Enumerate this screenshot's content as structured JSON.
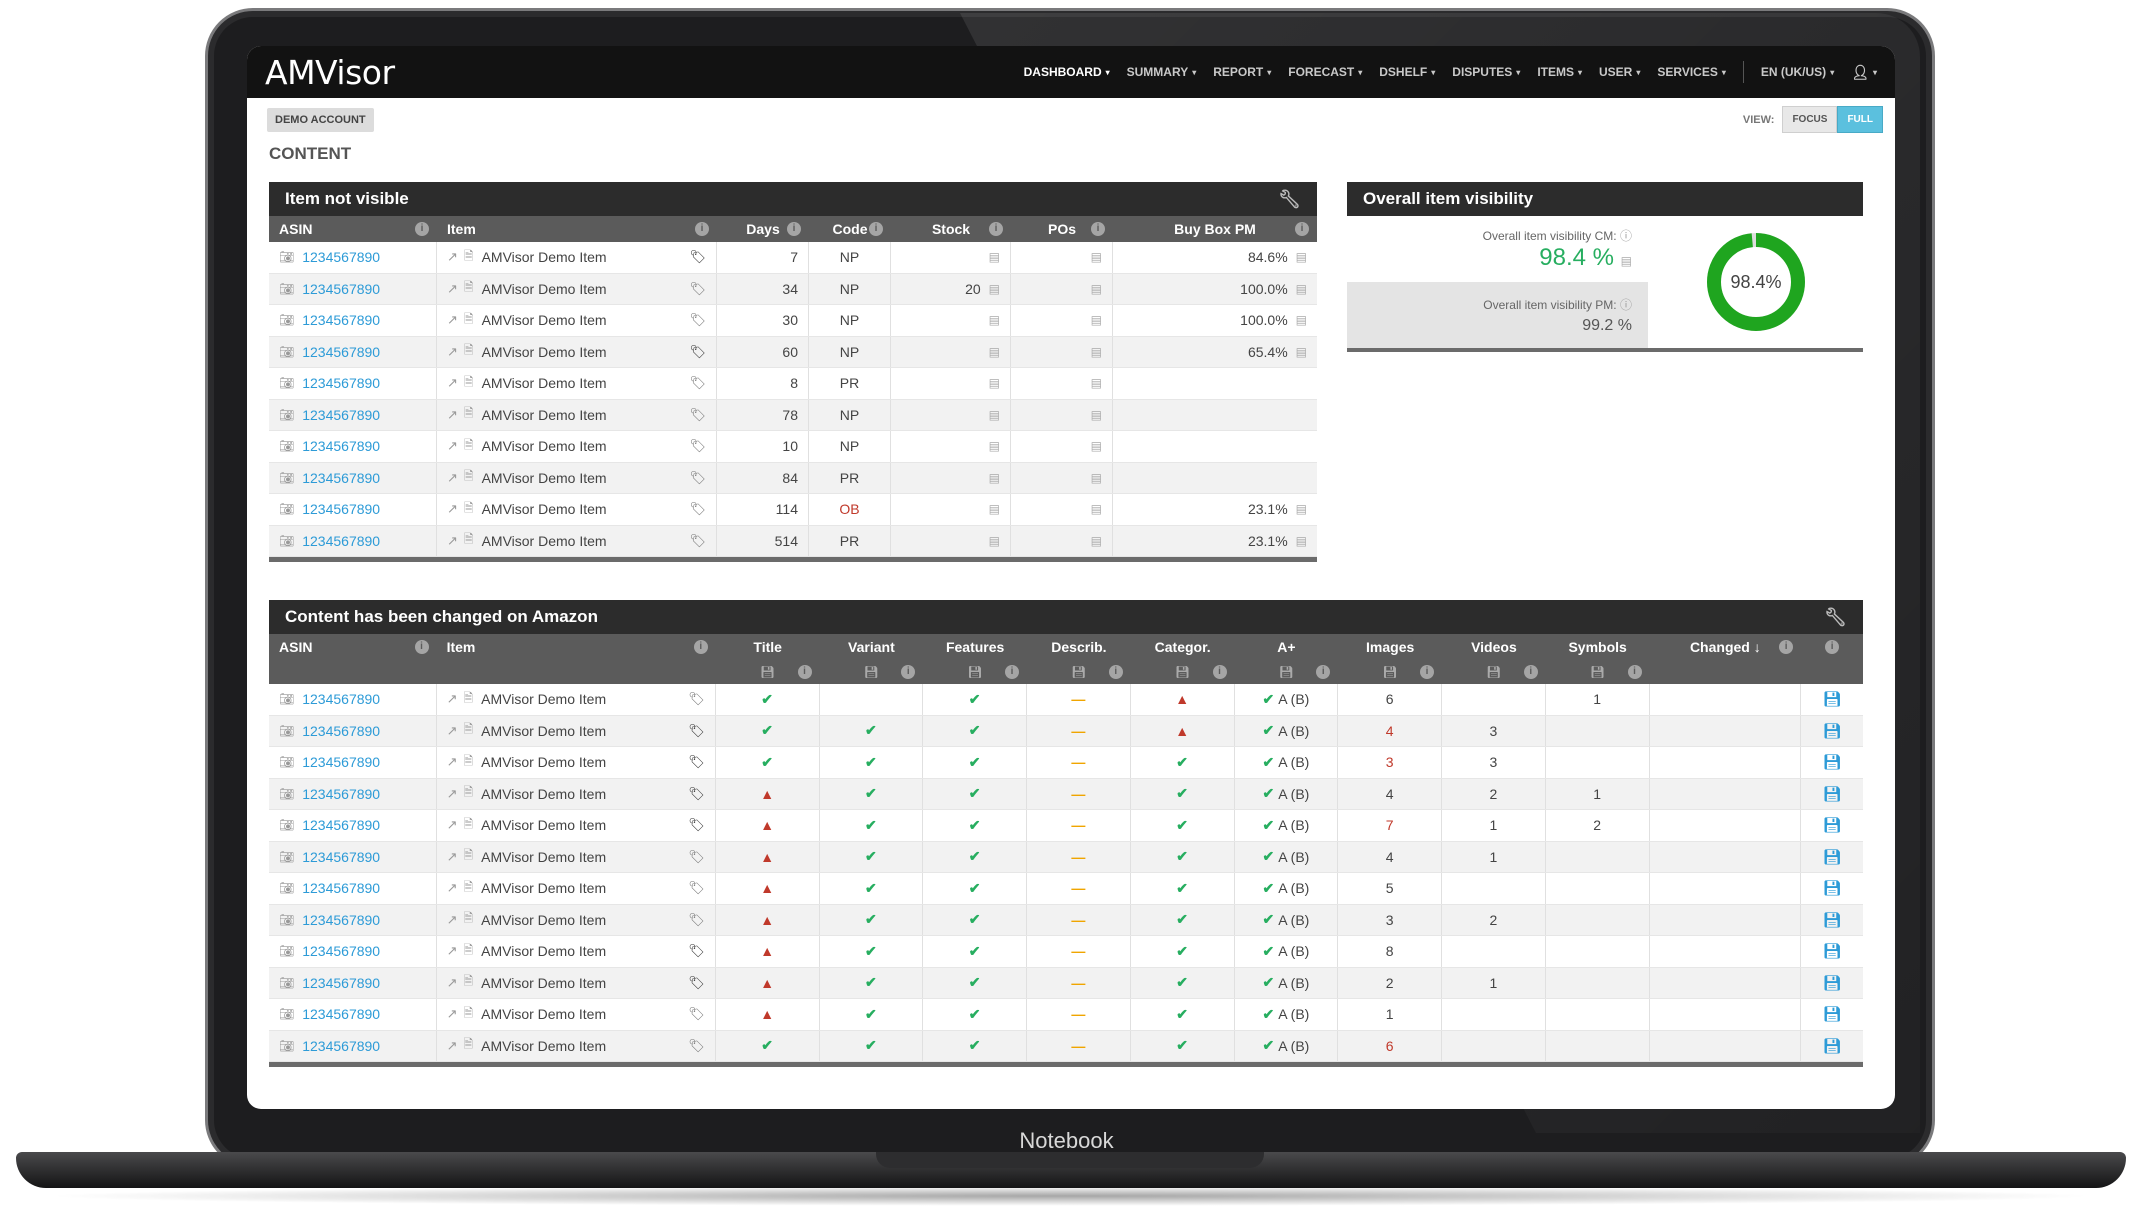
{
  "app": {
    "logo": "AMVisor",
    "device_label": "Notebook"
  },
  "nav": {
    "items": [
      "DASHBOARD",
      "SUMMARY",
      "REPORT",
      "FORECAST",
      "DSHELF",
      "DISPUTES",
      "ITEMS",
      "USER",
      "SERVICES"
    ],
    "language": "EN (UK/US)",
    "active": "DASHBOARD"
  },
  "header": {
    "account_badge": "DEMO ACCOUNT",
    "title": "CONTENT",
    "view_label": "VIEW:",
    "view_focus": "FOCUS",
    "view_full": "FULL"
  },
  "panel1": {
    "title": "Item not visible",
    "columns": [
      "ASIN",
      "Item",
      "Days",
      "Code",
      "Stock",
      "POs",
      "Buy Box PM"
    ],
    "rows": [
      {
        "asin": "1234567890",
        "item": "AMVisor Demo Item",
        "tag_dark": true,
        "days": "7",
        "code": "NP",
        "stock": "",
        "buybox": "84.6%"
      },
      {
        "asin": "1234567890",
        "item": "AMVisor Demo Item",
        "tag_dark": false,
        "days": "34",
        "code": "NP",
        "stock": "20",
        "buybox": "100.0%"
      },
      {
        "asin": "1234567890",
        "item": "AMVisor Demo Item",
        "tag_dark": false,
        "days": "30",
        "code": "NP",
        "stock": "",
        "buybox": "100.0%"
      },
      {
        "asin": "1234567890",
        "item": "AMVisor Demo Item",
        "tag_dark": true,
        "days": "60",
        "code": "NP",
        "stock": "",
        "buybox": "65.4%"
      },
      {
        "asin": "1234567890",
        "item": "AMVisor Demo Item",
        "tag_dark": false,
        "days": "8",
        "code": "PR",
        "stock": "",
        "buybox": ""
      },
      {
        "asin": "1234567890",
        "item": "AMVisor Demo Item",
        "tag_dark": false,
        "days": "78",
        "code": "NP",
        "stock": "",
        "buybox": ""
      },
      {
        "asin": "1234567890",
        "item": "AMVisor Demo Item",
        "tag_dark": false,
        "days": "10",
        "code": "NP",
        "stock": "",
        "buybox": ""
      },
      {
        "asin": "1234567890",
        "item": "AMVisor Demo Item",
        "tag_dark": false,
        "days": "84",
        "code": "PR",
        "stock": "",
        "buybox": ""
      },
      {
        "asin": "1234567890",
        "item": "AMVisor Demo Item",
        "tag_dark": false,
        "days": "114",
        "code": "OB",
        "stock": "",
        "buybox": "23.1%"
      },
      {
        "asin": "1234567890",
        "item": "AMVisor Demo Item",
        "tag_dark": false,
        "days": "514",
        "code": "PR",
        "stock": "",
        "buybox": "23.1%"
      }
    ]
  },
  "panel2": {
    "title": "Overall item visibility",
    "cm_label": "Overall item visibility CM:",
    "cm_value": "98.4 %",
    "pm_label": "Overall item visibility PM:",
    "pm_value": "99.2 %",
    "donut_label": "98.4%",
    "donut_fraction": 0.984,
    "donut_color": "#1fa51f"
  },
  "panel3": {
    "title": "Content has been changed on Amazon",
    "columns": [
      "ASIN",
      "Item",
      "Title",
      "Variant",
      "Features",
      "Describ.",
      "Categor.",
      "A+",
      "Images",
      "Videos",
      "Symbols",
      "Changed ↓"
    ],
    "aplus_text": "A (B)",
    "rows": [
      {
        "asin": "1234567890",
        "item": "AMVisor Demo Item",
        "tag_dark": false,
        "title": "check",
        "variant": "",
        "features": "check",
        "describ": "dash",
        "categor": "warn",
        "images": "6",
        "images_red": false,
        "videos": "",
        "symbols": "1"
      },
      {
        "asin": "1234567890",
        "item": "AMVisor Demo Item",
        "tag_dark": true,
        "title": "check",
        "variant": "check",
        "features": "check",
        "describ": "dash",
        "categor": "warn",
        "images": "4",
        "images_red": true,
        "videos": "3",
        "symbols": ""
      },
      {
        "asin": "1234567890",
        "item": "AMVisor Demo Item",
        "tag_dark": true,
        "title": "check",
        "variant": "check",
        "features": "check",
        "describ": "dash",
        "categor": "check",
        "images": "3",
        "images_red": true,
        "videos": "3",
        "symbols": ""
      },
      {
        "asin": "1234567890",
        "item": "AMVisor Demo Item",
        "tag_dark": true,
        "title": "warn",
        "variant": "check",
        "features": "check",
        "describ": "dash",
        "categor": "check",
        "images": "4",
        "images_red": false,
        "videos": "2",
        "symbols": "1"
      },
      {
        "asin": "1234567890",
        "item": "AMVisor Demo Item",
        "tag_dark": true,
        "title": "warn",
        "variant": "check",
        "features": "check",
        "describ": "dash",
        "categor": "check",
        "images": "7",
        "images_red": true,
        "videos": "1",
        "symbols": "2"
      },
      {
        "asin": "1234567890",
        "item": "AMVisor Demo Item",
        "tag_dark": false,
        "title": "warn",
        "variant": "check",
        "features": "check",
        "describ": "dash",
        "categor": "check",
        "images": "4",
        "images_red": false,
        "videos": "1",
        "symbols": ""
      },
      {
        "asin": "1234567890",
        "item": "AMVisor Demo Item",
        "tag_dark": false,
        "title": "warn",
        "variant": "check",
        "features": "check",
        "describ": "dash",
        "categor": "check",
        "images": "5",
        "images_red": false,
        "videos": "",
        "symbols": ""
      },
      {
        "asin": "1234567890",
        "item": "AMVisor Demo Item",
        "tag_dark": false,
        "title": "warn",
        "variant": "check",
        "features": "check",
        "describ": "dash",
        "categor": "check",
        "images": "3",
        "images_red": false,
        "videos": "2",
        "symbols": ""
      },
      {
        "asin": "1234567890",
        "item": "AMVisor Demo Item",
        "tag_dark": true,
        "title": "warn",
        "variant": "check",
        "features": "check",
        "describ": "dash",
        "categor": "check",
        "images": "8",
        "images_red": false,
        "videos": "",
        "symbols": ""
      },
      {
        "asin": "1234567890",
        "item": "AMVisor Demo Item",
        "tag_dark": true,
        "title": "warn",
        "variant": "check",
        "features": "check",
        "describ": "dash",
        "categor": "check",
        "images": "2",
        "images_red": false,
        "videos": "1",
        "symbols": ""
      },
      {
        "asin": "1234567890",
        "item": "AMVisor Demo Item",
        "tag_dark": false,
        "title": "warn",
        "variant": "check",
        "features": "check",
        "describ": "dash",
        "categor": "check",
        "images": "1",
        "images_red": false,
        "videos": "",
        "symbols": ""
      },
      {
        "asin": "1234567890",
        "item": "AMVisor Demo Item",
        "tag_dark": false,
        "title": "check",
        "variant": "check",
        "features": "check",
        "describ": "dash",
        "categor": "check",
        "images": "6",
        "images_red": true,
        "videos": "",
        "symbols": ""
      }
    ]
  },
  "icons": {
    "camera": "camera-icon",
    "external": "external-link-icon",
    "document": "document-icon",
    "tag": "tag-icon",
    "chart": "bar-chart-icon",
    "info": "info-icon",
    "save": "save-icon",
    "wrench": "wrench-icon",
    "check": "check-icon",
    "warning": "warning-icon",
    "user": "user-icon"
  },
  "colors": {
    "link": "#2d9bd7",
    "check": "#27ae60",
    "warning": "#c0392b",
    "dash": "#f0a500",
    "accent": "#5bc0de"
  }
}
